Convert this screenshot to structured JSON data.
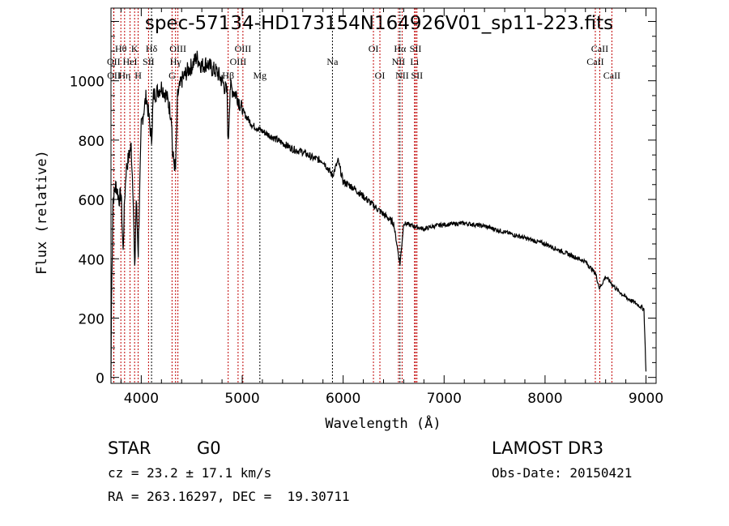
{
  "chart_data": {
    "type": "line",
    "title": "spec-57134-HD173154N164926V01_sp11-223.fits",
    "xlabel": "Wavelength (Å)",
    "ylabel": "Flux (relative)",
    "xlim": [
      3700,
      9100
    ],
    "ylim": [
      -20,
      1245
    ],
    "xticks": [
      4000,
      5000,
      6000,
      7000,
      8000,
      9000
    ],
    "xtick_labels": [
      "4000",
      "5000",
      "6000",
      "7000",
      "8000",
      "9000"
    ],
    "yticks": [
      0,
      200,
      400,
      600,
      800,
      1000
    ],
    "ytick_labels": [
      "0",
      "200",
      "400",
      "600",
      "800",
      "1000"
    ],
    "series": [
      {
        "name": "spectrum",
        "x": [
          3700,
          3705,
          3720,
          3750,
          3780,
          3800,
          3820,
          3835,
          3850,
          3880,
          3900,
          3920,
          3935,
          3950,
          3970,
          3990,
          4000,
          4050,
          4102,
          4120,
          4200,
          4250,
          4300,
          4310,
          4340,
          4360,
          4400,
          4450,
          4500,
          4550,
          4600,
          4650,
          4700,
          4750,
          4800,
          4850,
          4861,
          4880,
          4950,
          5000,
          5100,
          5200,
          5300,
          5400,
          5500,
          5600,
          5700,
          5800,
          5894,
          5950,
          6000,
          6100,
          6200,
          6300,
          6400,
          6500,
          6563,
          6600,
          6700,
          6800,
          6900,
          7000,
          7200,
          7400,
          7600,
          7800,
          8000,
          8200,
          8400,
          8500,
          8540,
          8600,
          8700,
          8800,
          8900,
          8980,
          9000
        ],
        "y": [
          0,
          250,
          600,
          650,
          600,
          620,
          420,
          600,
          700,
          750,
          780,
          620,
          350,
          600,
          420,
          700,
          850,
          950,
          800,
          950,
          980,
          950,
          880,
          750,
          700,
          950,
          1000,
          1030,
          1050,
          1080,
          1050,
          1060,
          1040,
          1030,
          1000,
          960,
          780,
          980,
          950,
          900,
          850,
          830,
          810,
          790,
          770,
          760,
          740,
          730,
          680,
          730,
          660,
          640,
          610,
          580,
          550,
          520,
          380,
          520,
          510,
          500,
          510,
          515,
          520,
          510,
          490,
          470,
          450,
          420,
          390,
          350,
          300,
          340,
          300,
          270,
          250,
          230,
          20
        ]
      }
    ],
    "lines": [
      {
        "w": 3727,
        "label": "OII",
        "row": 2,
        "color": "#c00000"
      },
      {
        "w": 3729,
        "label": "OII",
        "row": 3,
        "color": "#c00000"
      },
      {
        "w": 3798,
        "label": "Hθ",
        "row": 1,
        "color": "#c00000"
      },
      {
        "w": 3835,
        "label": "Hη",
        "row": 3,
        "color": "#c00000"
      },
      {
        "w": 3889,
        "label": "HeI",
        "row": 2,
        "color": "#c00000"
      },
      {
        "w": 3934,
        "label": "K",
        "row": 1,
        "color": "#c00000"
      },
      {
        "w": 3969,
        "label": "H",
        "row": 3,
        "color": "#c00000"
      },
      {
        "w": 4072,
        "label": "SII",
        "row": 2,
        "color": "#c00000"
      },
      {
        "w": 4102,
        "label": "Hδ",
        "row": 1,
        "color": "#000000"
      },
      {
        "w": 4305,
        "label": "G",
        "row": 3,
        "color": "#c00000"
      },
      {
        "w": 4340,
        "label": "Hγ",
        "row": 2,
        "color": "#c00000"
      },
      {
        "w": 4363,
        "label": "OIII",
        "row": 1,
        "color": "#c00000"
      },
      {
        "w": 4861,
        "label": "Hβ",
        "row": 3,
        "color": "#c00000"
      },
      {
        "w": 4959,
        "label": "OIII",
        "row": 2,
        "color": "#c00000"
      },
      {
        "w": 5007,
        "label": "OIII",
        "row": 1,
        "color": "#c00000"
      },
      {
        "w": 5175,
        "label": "Mg",
        "row": 3,
        "color": "#000000"
      },
      {
        "w": 5894,
        "label": "Na",
        "row": 2,
        "color": "#000000"
      },
      {
        "w": 6300,
        "label": "OI",
        "row": 1,
        "color": "#c00000"
      },
      {
        "w": 6364,
        "label": "OI",
        "row": 3,
        "color": "#c00000"
      },
      {
        "w": 6548,
        "label": "NII",
        "row": 2,
        "color": "#c00000"
      },
      {
        "w": 6563,
        "label": "Hα",
        "row": 1,
        "color": "#000000"
      },
      {
        "w": 6584,
        "label": "NII",
        "row": 3,
        "color": "#c00000"
      },
      {
        "w": 6707,
        "label": "Li",
        "row": 2,
        "color": "#c00000"
      },
      {
        "w": 6717,
        "label": "SII",
        "row": 1,
        "color": "#c00000"
      },
      {
        "w": 6731,
        "label": "SII",
        "row": 3,
        "color": "#c00000"
      },
      {
        "w": 8498,
        "label": "CaII",
        "row": 2,
        "color": "#c00000"
      },
      {
        "w": 8542,
        "label": "CaII",
        "row": 1,
        "color": "#c00000"
      },
      {
        "w": 8662,
        "label": "CaII",
        "row": 3,
        "color": "#c00000"
      }
    ]
  },
  "info": {
    "class": "STAR",
    "subclass": "G0",
    "survey": "LAMOST DR3",
    "cz": "cz = 23.2 ± 17.1 km/s",
    "obs_date": "Obs-Date: 20150421",
    "radec": "RA = 263.16297, DEC =  19.30711"
  }
}
